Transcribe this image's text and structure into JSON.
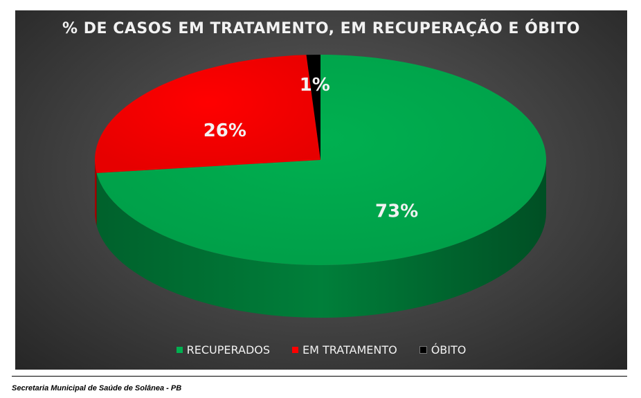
{
  "chart_data": {
    "type": "pie",
    "title": "% DE CASOS EM TRATAMENTO, EM RECUPERAÇÃO E ÓBITO",
    "slices": [
      {
        "name": "RECUPERADOS",
        "value": 73,
        "label": "73%",
        "color": "#00b050"
      },
      {
        "name": "EM TRATAMENTO",
        "value": 26,
        "label": "26%",
        "color": "#ff0000"
      },
      {
        "name": "ÓBITO",
        "value": 1,
        "label": "1%",
        "color": "#000000"
      }
    ],
    "legend_position": "bottom",
    "style": "3d"
  },
  "footer": {
    "source": "Secretaria Municipal de Saúde de Solânea - PB"
  }
}
